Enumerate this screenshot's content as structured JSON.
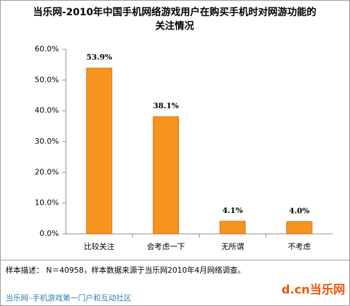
{
  "chart_data": {
    "type": "bar",
    "title": [
      "当乐网-2010年中国手机网络游戏用户在购买手机时对网游功能的",
      "关注情况"
    ],
    "categories": [
      "比较关注",
      "会考虑一下",
      "无所谓",
      "不考虑"
    ],
    "values": [
      53.9,
      38.1,
      4.1,
      4.0
    ],
    "value_labels": [
      "53.9%",
      "38.1%",
      "4.1%",
      "4.0%"
    ],
    "color": "#f7941d",
    "ylim": [
      0,
      60
    ],
    "yticks": [
      {
        "value": 0,
        "label": "0.0%"
      },
      {
        "value": 10,
        "label": "10.0%"
      },
      {
        "value": 20,
        "label": "20.0%"
      },
      {
        "value": 30,
        "label": "30.0%"
      },
      {
        "value": 40,
        "label": "40.0%"
      },
      {
        "value": 50,
        "label": "50.0%"
      },
      {
        "value": 60,
        "label": "60.0%"
      }
    ],
    "grid": false,
    "note": "样本描述： N＝40958，样本数据来源于当乐网2010年4月网络调查。",
    "footer": "当乐网–手机游戏第一门户和互动社区",
    "logo": "d.cn当乐网"
  }
}
